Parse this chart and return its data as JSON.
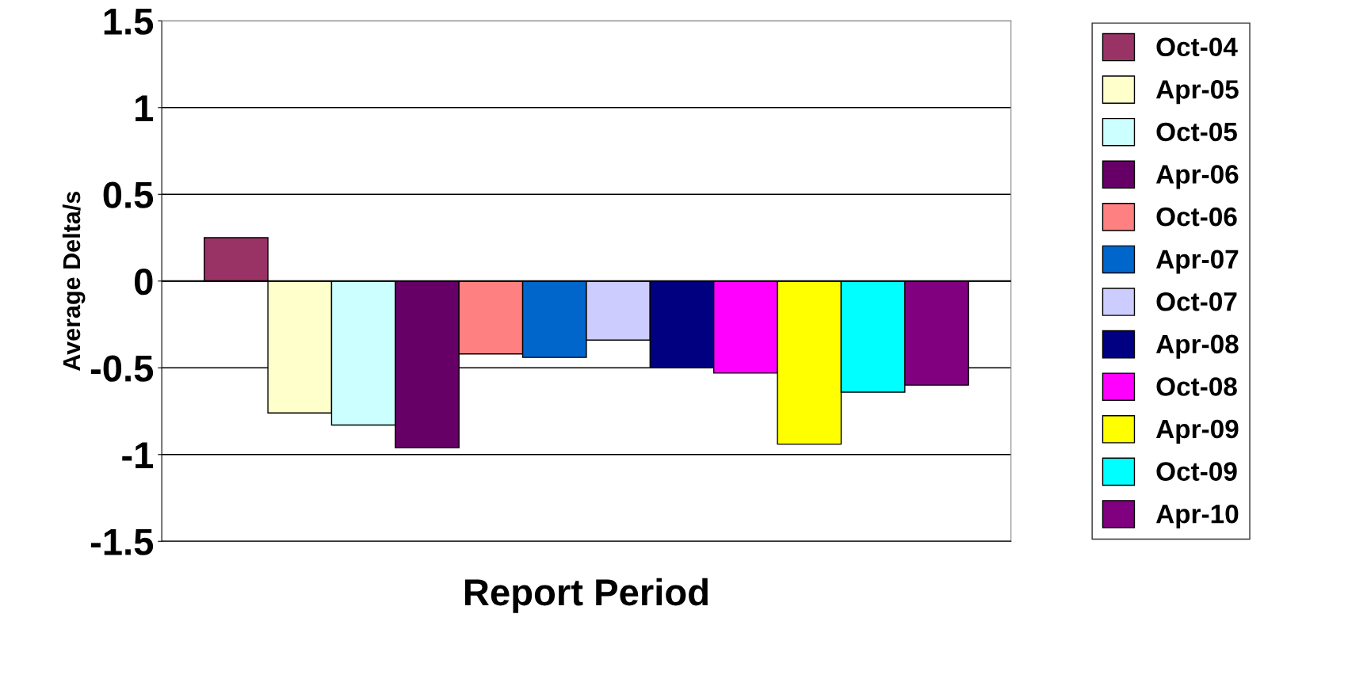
{
  "chart_data": {
    "type": "bar",
    "xlabel": "Report Period",
    "ylabel": "Average Delta/s",
    "categories": [
      null
    ],
    "series": [
      {
        "name": "Oct-04",
        "color": "#993366",
        "values": [
          0.25
        ]
      },
      {
        "name": "Apr-05",
        "color": "#ffffcc",
        "values": [
          -0.76
        ]
      },
      {
        "name": "Oct-05",
        "color": "#ccffff",
        "values": [
          -0.83
        ]
      },
      {
        "name": "Apr-06",
        "color": "#660066",
        "values": [
          -0.96
        ]
      },
      {
        "name": "Oct-06",
        "color": "#ff8080",
        "values": [
          -0.42
        ]
      },
      {
        "name": "Apr-07",
        "color": "#0066cc",
        "values": [
          -0.44
        ]
      },
      {
        "name": "Oct-07",
        "color": "#ccccff",
        "values": [
          -0.34
        ]
      },
      {
        "name": "Apr-08",
        "color": "#000080",
        "values": [
          -0.5
        ]
      },
      {
        "name": "Oct-08",
        "color": "#ff00ff",
        "values": [
          -0.53
        ]
      },
      {
        "name": "Apr-09",
        "color": "#ffff00",
        "values": [
          -0.94
        ]
      },
      {
        "name": "Oct-09",
        "color": "#00ffff",
        "values": [
          -0.64
        ]
      },
      {
        "name": "Apr-10",
        "color": "#800080",
        "values": [
          -0.6
        ]
      }
    ],
    "ylim": [
      -1.5,
      1.5
    ],
    "yticks": [
      -1.5,
      -1,
      -0.5,
      0,
      0.5,
      1,
      1.5
    ],
    "grid": "y",
    "legend": "right"
  }
}
